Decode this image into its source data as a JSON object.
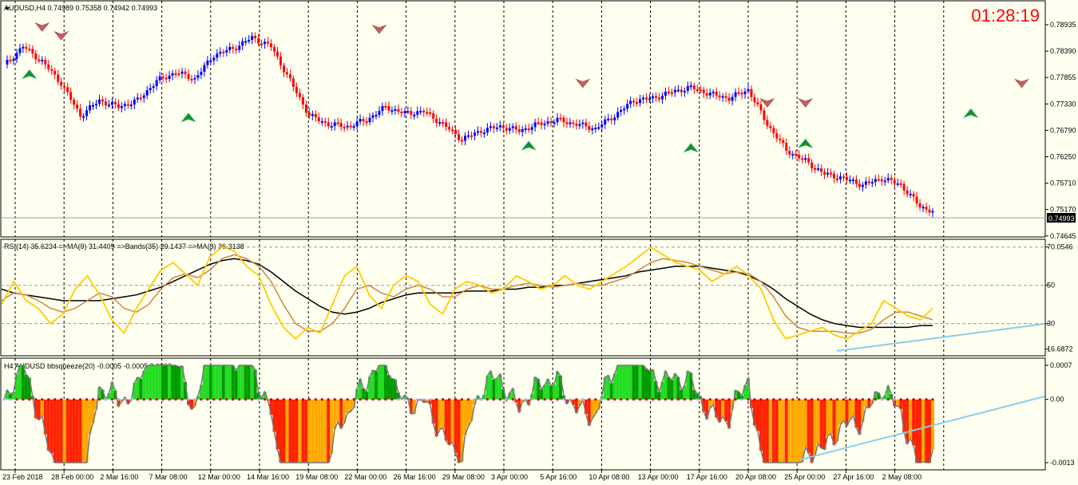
{
  "colors": {
    "background": "#fffff0",
    "bull": "#0000ff",
    "bear": "#ff0000",
    "rsi": "#ffcc00",
    "rsi_ma": "#cc8844",
    "rsi_bands": "#000000",
    "trendline": "#87ceeb",
    "hist_green_dark": "#009900",
    "hist_green_light": "#22dd22",
    "hist_red": "#ff2200",
    "hist_orange": "#ffaa00",
    "squeeze_dot": "#cc0000",
    "arrow_up": "#228b22",
    "arrow_down": "#cd5c5c"
  },
  "header": {
    "main_title": "AUDUSD,H4  0.74989 0.75358 0.74942 0.74993",
    "clock": "01:28:19",
    "rsi_title": "RSI(14) 35.6234  =>MA(9) 31.4409  =>Bands(35) 29.1437  =>MA(3) 36.3138",
    "bbs_title": "H4 AUDUSD bbsqueeze(20) -0.0005 -0.0005 0.0000"
  },
  "price_axis": {
    "ticks": [
      "0.78935",
      "0.78390",
      "0.77855",
      "0.77330",
      "0.76790",
      "0.76250",
      "0.75710",
      "0.75170",
      "0.74645"
    ],
    "current": "0.74993"
  },
  "rsi_axis": {
    "ticks": [
      "70.0546",
      "50",
      "30",
      "16.6872"
    ]
  },
  "bbs_axis": {
    "ticks": [
      "0.0007",
      "0.00",
      "-0.0013"
    ]
  },
  "time_axis": {
    "labels": [
      "23 Feb 2018",
      "28 Feb 00:00",
      "2 Mar 16:00",
      "7 Mar 08:00",
      "12 Mar 00:00",
      "14 Mar 16:00",
      "19 Mar 08:00",
      "22 Mar 00:00",
      "26 Mar 16:00",
      "29 Mar 08:00",
      "3 Apr 00:00",
      "5 Apr 16:00",
      "10 Apr 08:00",
      "13 Apr 00:00",
      "17 Apr 16:00",
      "20 Apr 08:00",
      "25 Apr 00:00",
      "27 Apr 16:00",
      "2 May 08:00"
    ]
  },
  "chart_data": {
    "type": "bar",
    "symbol": "AUDUSD",
    "timeframe": "H4",
    "last": {
      "open": 0.74989,
      "high": 0.75358,
      "low": 0.74942,
      "close": 0.74993
    },
    "price_range": [
      0.7445,
      0.7965
    ],
    "close_approx": [
      [
        0,
        0.7835
      ],
      [
        6,
        0.788
      ],
      [
        12,
        0.7845
      ],
      [
        18,
        0.7795
      ],
      [
        24,
        0.772
      ],
      [
        30,
        0.7755
      ],
      [
        36,
        0.774
      ],
      [
        42,
        0.7755
      ],
      [
        48,
        0.78
      ],
      [
        54,
        0.782
      ],
      [
        60,
        0.7805
      ],
      [
        66,
        0.786
      ],
      [
        72,
        0.7875
      ],
      [
        78,
        0.79
      ],
      [
        84,
        0.788
      ],
      [
        90,
        0.78
      ],
      [
        96,
        0.772
      ],
      [
        102,
        0.77
      ],
      [
        108,
        0.7695
      ],
      [
        114,
        0.771
      ],
      [
        120,
        0.774
      ],
      [
        126,
        0.7725
      ],
      [
        132,
        0.773
      ],
      [
        138,
        0.77
      ],
      [
        144,
        0.7665
      ],
      [
        150,
        0.7685
      ],
      [
        156,
        0.7695
      ],
      [
        162,
        0.7685
      ],
      [
        168,
        0.77
      ],
      [
        174,
        0.771
      ],
      [
        180,
        0.77
      ],
      [
        186,
        0.769
      ],
      [
        192,
        0.772
      ],
      [
        198,
        0.7755
      ],
      [
        204,
        0.776
      ],
      [
        210,
        0.7775
      ],
      [
        216,
        0.7785
      ],
      [
        222,
        0.777
      ],
      [
        228,
        0.776
      ],
      [
        234,
        0.778
      ],
      [
        240,
        0.77
      ],
      [
        246,
        0.764
      ],
      [
        252,
        0.7615
      ],
      [
        258,
        0.7585
      ],
      [
        264,
        0.7575
      ],
      [
        270,
        0.756
      ],
      [
        276,
        0.7575
      ],
      [
        282,
        0.756
      ],
      [
        288,
        0.751
      ],
      [
        292,
        0.7499
      ]
    ],
    "signals": {
      "up": [
        [
          8,
          0.7825
        ],
        [
          58,
          0.7725
        ],
        [
          165,
          0.766
        ],
        [
          216,
          0.7655
        ],
        [
          252,
          0.7665
        ],
        [
          304,
          0.7735
        ]
      ],
      "down": [
        [
          12,
          0.7915
        ],
        [
          18,
          0.7895
        ],
        [
          118,
          0.791
        ],
        [
          182,
          0.7785
        ],
        [
          240,
          0.774
        ],
        [
          252,
          0.774
        ],
        [
          320,
          0.7785
        ]
      ]
    },
    "rsi": {
      "series": [
        {
          "name": "RSI(14)",
          "last": 35.6234
        },
        {
          "name": "MA(9)",
          "last": 31.4409
        },
        {
          "name": "Bands(35)",
          "last": 29.1437
        },
        {
          "name": "MA(3)",
          "last": 36.3138
        }
      ],
      "levels": [
        30,
        50,
        70
      ],
      "range": [
        14,
        72
      ],
      "rsi_values": [
        40,
        52,
        42,
        38,
        30,
        35,
        48,
        55,
        45,
        32,
        25,
        38,
        48,
        58,
        62,
        56,
        50,
        65,
        70,
        68,
        60,
        55,
        40,
        28,
        22,
        28,
        25,
        40,
        55,
        60,
        45,
        38,
        50,
        55,
        52,
        40,
        35,
        48,
        52,
        50,
        46,
        48,
        55,
        52,
        48,
        50,
        55,
        50,
        48,
        52,
        56,
        60,
        65,
        70,
        66,
        62,
        60,
        58,
        52,
        56,
        60,
        55,
        48,
        32,
        22,
        24,
        26,
        28,
        24,
        22,
        26,
        30,
        42,
        38,
        34,
        32,
        38
      ],
      "ma_values": [
        42,
        46,
        45,
        42,
        38,
        36,
        38,
        42,
        46,
        44,
        38,
        36,
        40,
        48,
        54,
        56,
        54,
        58,
        64,
        66,
        64,
        60,
        52,
        40,
        30,
        26,
        26,
        30,
        38,
        48,
        50,
        46,
        44,
        48,
        50,
        48,
        44,
        44,
        48,
        50,
        48,
        48,
        50,
        51,
        50,
        49,
        50,
        51,
        50,
        50,
        52,
        54,
        58,
        62,
        64,
        63,
        62,
        60,
        58,
        56,
        57,
        56,
        52,
        44,
        34,
        28,
        26,
        26,
        26,
        25,
        25,
        27,
        32,
        36,
        36,
        34,
        32
      ],
      "bands_values": [
        48,
        46,
        45,
        44,
        43,
        42,
        42,
        42,
        42,
        43,
        44,
        45,
        47,
        49,
        52,
        55,
        58,
        61,
        63,
        64,
        63,
        61,
        57,
        52,
        47,
        43,
        39,
        36,
        35,
        36,
        38,
        41,
        43,
        45,
        46,
        46,
        46,
        46,
        47,
        47,
        47,
        48,
        48,
        49,
        49,
        50,
        50,
        51,
        52,
        53,
        54,
        55,
        57,
        58,
        59,
        60,
        60,
        60,
        59,
        58,
        57,
        55,
        52,
        48,
        43,
        39,
        35,
        32,
        30,
        29,
        28,
        28,
        28,
        28,
        28,
        29,
        29
      ]
    },
    "bbsqueeze": {
      "range": [
        -0.0013,
        0.0007
      ],
      "last": [
        -0.0005,
        -0.0005,
        0.0
      ]
    }
  }
}
